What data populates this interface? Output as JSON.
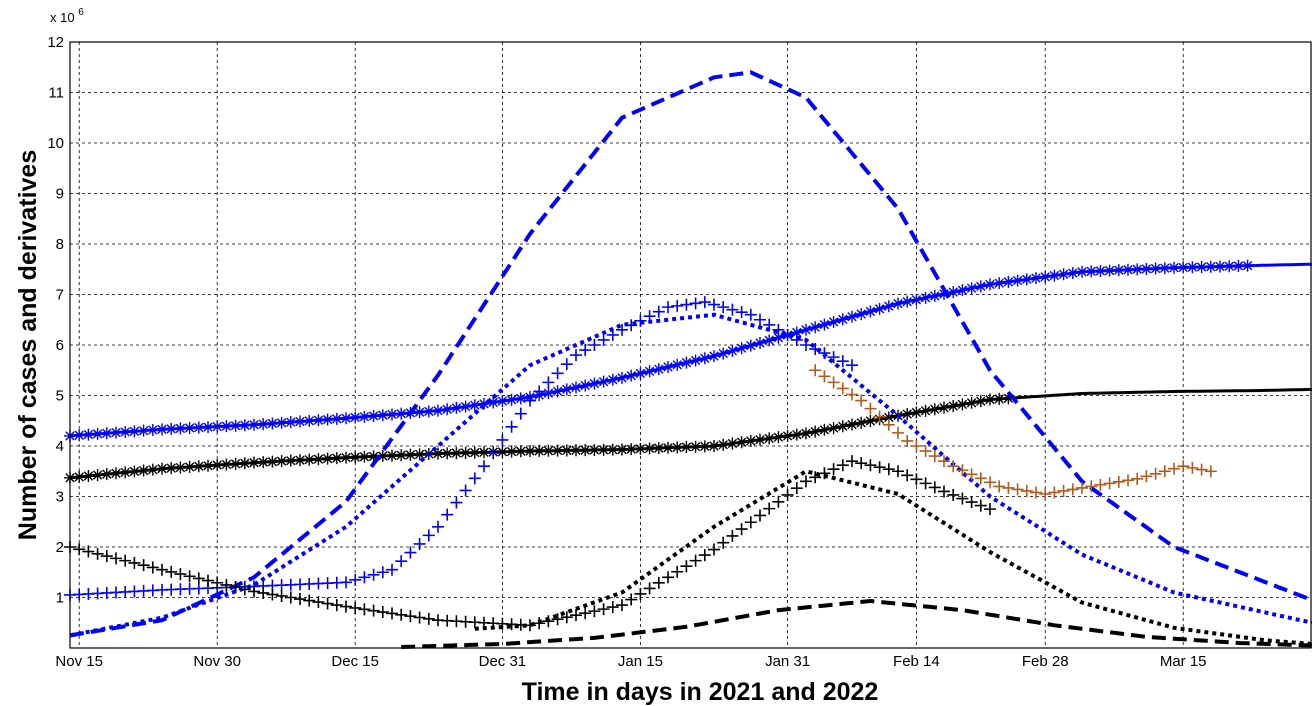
{
  "chart_data": {
    "type": "line",
    "xlabel": "Time in days in 2021 and 2022",
    "ylabel": "Number of cases and derivatives",
    "y_multiplier": "x 10",
    "y_multiplier_exp": "6",
    "xlim": [
      "2021-11-14",
      "2022-03-29"
    ],
    "ylim": [
      0,
      12
    ],
    "yticks": [
      1,
      2,
      3,
      4,
      5,
      6,
      7,
      8,
      9,
      10,
      11,
      12
    ],
    "xticks": [
      {
        "date": "2021-11-15",
        "label": "Nov 15"
      },
      {
        "date": "2021-11-30",
        "label": "Nov 30"
      },
      {
        "date": "2021-12-15",
        "label": "Dec 15"
      },
      {
        "date": "2021-12-31",
        "label": "Dec 31"
      },
      {
        "date": "2022-01-15",
        "label": "Jan 15"
      },
      {
        "date": "2022-01-31",
        "label": "Jan 31"
      },
      {
        "date": "2022-02-14",
        "label": "Feb 14"
      },
      {
        "date": "2022-02-28",
        "label": "Feb 28"
      },
      {
        "date": "2022-03-15",
        "label": "Mar 15"
      }
    ],
    "grid": true,
    "series": [
      {
        "color": "#0000ff",
        "style": "solid",
        "marker": "*",
        "x": [
          "2021-11-14",
          "2021-11-24",
          "2021-12-04",
          "2021-12-14",
          "2021-12-24",
          "2022-01-03",
          "2022-01-13",
          "2022-01-23",
          "2022-02-02",
          "2022-02-12",
          "2022-02-22",
          "2022-03-04",
          "2022-03-14",
          "2022-03-24",
          "2022-03-29"
        ],
        "y": [
          4.2,
          4.33,
          4.42,
          4.55,
          4.7,
          4.97,
          5.35,
          5.78,
          6.3,
          6.82,
          7.2,
          7.45,
          7.53,
          7.58,
          7.6
        ],
        "marker_until": "2022-03-22"
      },
      {
        "color": "#000000",
        "style": "solid",
        "marker": "*",
        "x": [
          "2021-11-14",
          "2021-11-24",
          "2021-12-04",
          "2021-12-14",
          "2021-12-24",
          "2022-01-03",
          "2022-01-13",
          "2022-01-23",
          "2022-02-02",
          "2022-02-12",
          "2022-02-22",
          "2022-03-04",
          "2022-03-14",
          "2022-03-24",
          "2022-03-29"
        ],
        "y": [
          3.37,
          3.55,
          3.67,
          3.77,
          3.85,
          3.9,
          3.93,
          4.0,
          4.25,
          4.6,
          4.92,
          5.04,
          5.08,
          5.1,
          5.12
        ],
        "marker_until": "2022-02-24"
      },
      {
        "color": "#0000ff",
        "style": "dashed",
        "marker": "",
        "x": [
          "2021-11-14",
          "2021-11-24",
          "2021-12-04",
          "2021-12-14",
          "2021-12-24",
          "2022-01-03",
          "2022-01-13",
          "2022-01-23",
          "2022-01-27",
          "2022-02-02",
          "2022-02-12",
          "2022-02-22",
          "2022-03-04",
          "2022-03-14",
          "2022-03-24",
          "2022-03-29"
        ],
        "y": [
          0.25,
          0.55,
          1.4,
          2.9,
          5.4,
          8.2,
          10.5,
          11.3,
          11.4,
          10.9,
          8.7,
          5.5,
          3.3,
          2.0,
          1.3,
          0.95
        ]
      },
      {
        "color": "#0000ff",
        "style": "dotted",
        "marker": "",
        "x": [
          "2021-11-14",
          "2021-11-24",
          "2021-12-04",
          "2021-12-14",
          "2021-12-24",
          "2022-01-03",
          "2022-01-13",
          "2022-01-23",
          "2022-02-02",
          "2022-02-12",
          "2022-02-22",
          "2022-03-04",
          "2022-03-14",
          "2022-03-24",
          "2022-03-29"
        ],
        "y": [
          0.25,
          0.6,
          1.25,
          2.4,
          4.0,
          5.6,
          6.4,
          6.6,
          6.1,
          4.6,
          3.0,
          1.85,
          1.1,
          0.7,
          0.5
        ]
      },
      {
        "color": "#000000",
        "style": "dotted",
        "marker": "",
        "x": [
          "2021-12-28",
          "2022-01-03",
          "2022-01-13",
          "2022-01-23",
          "2022-02-02",
          "2022-02-12",
          "2022-02-22",
          "2022-03-04",
          "2022-03-14",
          "2022-03-24",
          "2022-03-29"
        ],
        "y": [
          0.38,
          0.45,
          1.1,
          2.4,
          3.5,
          3.05,
          1.9,
          0.9,
          0.4,
          0.15,
          0.08
        ]
      },
      {
        "color": "#000000",
        "style": "dashed",
        "marker": "",
        "x": [
          "2021-12-20",
          "2021-12-31",
          "2022-01-10",
          "2022-01-20",
          "2022-01-30",
          "2022-02-09",
          "2022-02-19",
          "2022-03-01",
          "2022-03-11",
          "2022-03-21",
          "2022-03-29"
        ],
        "y": [
          0.02,
          0.08,
          0.2,
          0.42,
          0.75,
          0.93,
          0.75,
          0.45,
          0.22,
          0.1,
          0.05
        ]
      },
      {
        "color": "#0000ff",
        "style": "none",
        "marker": "+",
        "x": [
          "2021-11-14",
          "2021-11-24",
          "2021-12-04",
          "2021-12-14",
          "2021-12-19",
          "2021-12-24",
          "2021-12-29",
          "2022-01-03",
          "2022-01-08",
          "2022-01-13",
          "2022-01-18",
          "2022-01-22",
          "2022-01-27",
          "2022-02-02",
          "2022-02-07"
        ],
        "y": [
          1.05,
          1.15,
          1.22,
          1.3,
          1.55,
          2.4,
          3.6,
          4.9,
          5.8,
          6.3,
          6.75,
          6.85,
          6.6,
          6.0,
          5.6
        ]
      },
      {
        "color": "#000000",
        "style": "none",
        "marker": "+",
        "x": [
          "2021-11-14",
          "2021-11-24",
          "2021-12-04",
          "2021-12-14",
          "2021-12-24",
          "2022-01-03",
          "2022-01-13",
          "2022-01-23",
          "2022-02-02",
          "2022-02-07",
          "2022-02-12",
          "2022-02-17",
          "2022-02-22"
        ],
        "y": [
          2.0,
          1.55,
          1.12,
          0.82,
          0.55,
          0.45,
          0.85,
          1.95,
          3.3,
          3.7,
          3.5,
          3.1,
          2.75
        ]
      },
      {
        "color": "#b35a1f",
        "style": "none",
        "marker": "+",
        "x": [
          "2022-02-03",
          "2022-02-08",
          "2022-02-13",
          "2022-02-18",
          "2022-02-23",
          "2022-02-28",
          "2022-03-05",
          "2022-03-10",
          "2022-03-15",
          "2022-03-18"
        ],
        "y": [
          5.5,
          4.9,
          4.1,
          3.6,
          3.2,
          3.05,
          3.2,
          3.35,
          3.6,
          3.5
        ]
      }
    ]
  }
}
